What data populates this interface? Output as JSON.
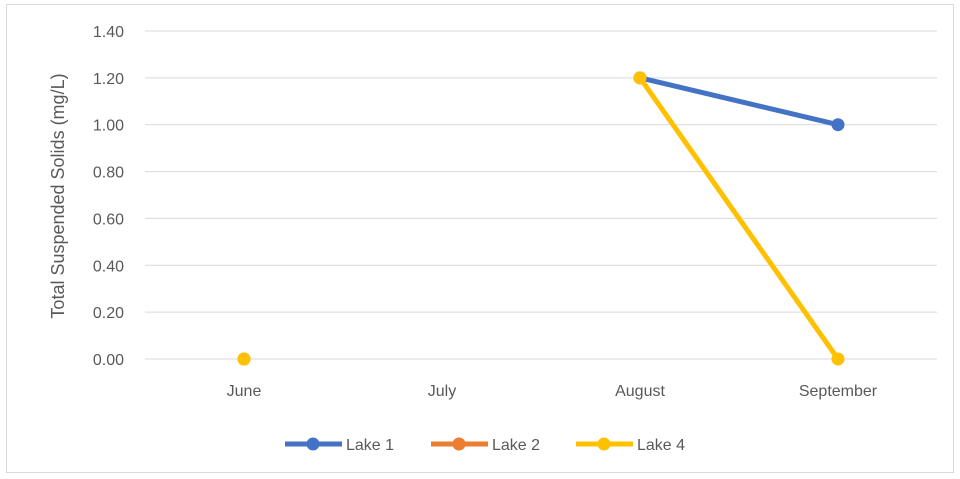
{
  "chart_data": {
    "type": "line",
    "categories": [
      "June",
      "July",
      "August",
      "September"
    ],
    "ylabel": "Total Suspended Solids (mg/L)",
    "xlabel": "",
    "ylim": [
      0,
      1.4
    ],
    "yticks": [
      "0.00",
      "0.20",
      "0.40",
      "0.60",
      "0.80",
      "1.00",
      "1.20",
      "1.40"
    ],
    "grid": true,
    "legend_position": "bottom",
    "series": [
      {
        "name": "Lake 1",
        "color": "#4472C4",
        "values": [
          null,
          null,
          1.2,
          1.0
        ]
      },
      {
        "name": "Lake 2",
        "color": "#ED7D31",
        "values": [
          0.0,
          null,
          null,
          null
        ]
      },
      {
        "name": "Lake 4",
        "color": "#FFC000",
        "values": [
          0.0,
          null,
          1.2,
          0.0
        ]
      }
    ]
  }
}
